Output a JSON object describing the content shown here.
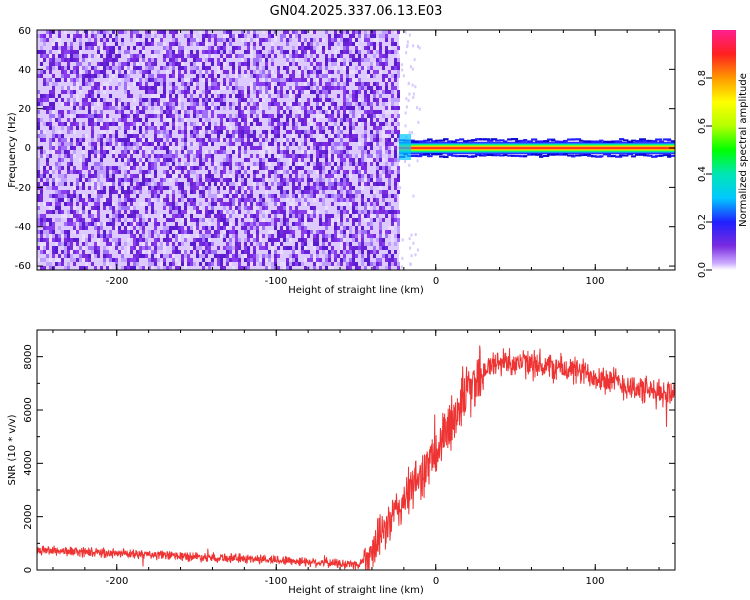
{
  "chart_data": [
    {
      "type": "heatmap",
      "title": "GN04.2025.337.06.13.E03",
      "xlabel": "Height of straight line (km)",
      "ylabel": "Frequency (Hz)",
      "xlim": [
        -250,
        150
      ],
      "ylim": [
        -62,
        60
      ],
      "xticks": [
        "-200",
        "-100",
        "0",
        "100"
      ],
      "yticks": [
        "60",
        "40",
        "20",
        "0",
        "-20",
        "-40",
        "-60"
      ],
      "colorbar": {
        "label": "Normalized spectral amplitude",
        "range": [
          0,
          1
        ],
        "ticks": [
          "0.0",
          "0.2",
          "0.4",
          "0.6",
          "0.8"
        ]
      },
      "regions": [
        {
          "x_range": [
            -250,
            -23
          ],
          "freq_range": [
            -62,
            60
          ],
          "amplitude": "low (noise, ~0.0-0.15)"
        },
        {
          "x_range": [
            -23,
            150
          ],
          "freq_range": [
            -2,
            3
          ],
          "center_freq": 0,
          "amplitude": "high (~0.8-1.0, narrow band at 0 Hz)"
        }
      ],
      "grid": false
    },
    {
      "type": "line",
      "xlabel": "Height of straight line (km)",
      "ylabel": "SNR (10 * v/v)",
      "xlim": [
        -250,
        150
      ],
      "ylim": [
        0,
        9000
      ],
      "xticks": [
        "-200",
        "-100",
        "0",
        "100"
      ],
      "yticks": [
        "0",
        "2000",
        "4000",
        "6000",
        "8000"
      ],
      "line_color": "#ee3333",
      "trend_points": {
        "x": [
          -250,
          -200,
          -150,
          -100,
          -60,
          -48,
          -40,
          -30,
          -20,
          -10,
          0,
          10,
          20,
          30,
          40,
          50,
          60,
          80,
          100,
          120,
          140,
          150
        ],
        "y": [
          750,
          620,
          500,
          380,
          240,
          200,
          700,
          1700,
          2600,
          3500,
          4300,
          5600,
          6800,
          7500,
          7800,
          7800,
          7700,
          7550,
          7300,
          6900,
          6600,
          6700
        ]
      },
      "grid": false
    }
  ]
}
